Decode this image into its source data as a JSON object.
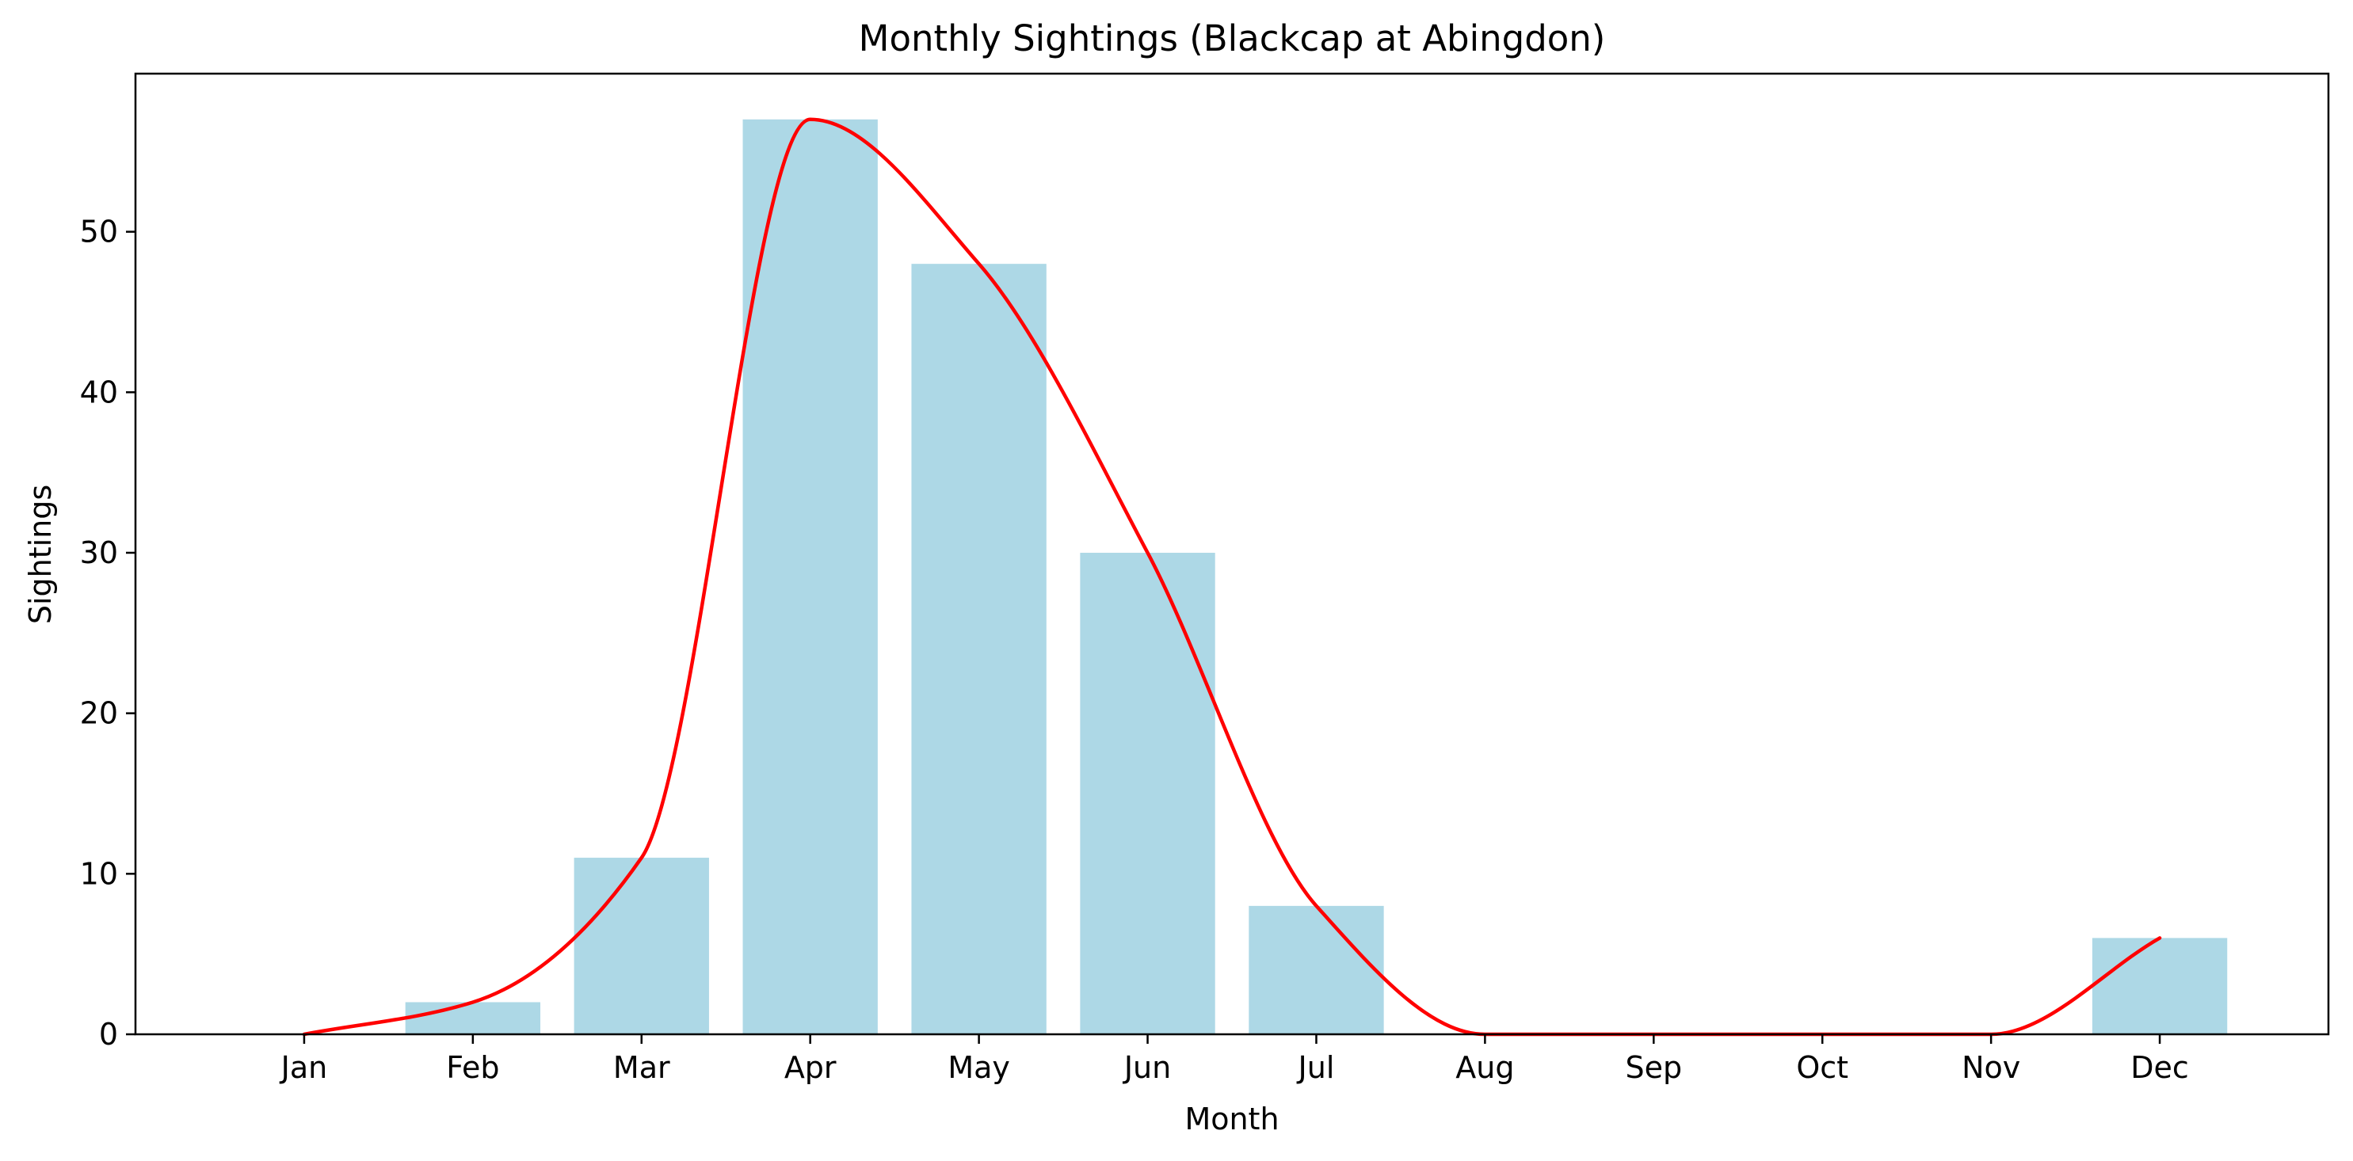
{
  "chart_data": {
    "type": "bar",
    "title": "Monthly Sightings (Blackcap at Abingdon)",
    "xlabel": "Month",
    "ylabel": "Sightings",
    "categories": [
      "Jan",
      "Feb",
      "Mar",
      "Apr",
      "May",
      "Jun",
      "Jul",
      "Aug",
      "Sep",
      "Oct",
      "Nov",
      "Dec"
    ],
    "values": [
      0,
      2,
      11,
      57,
      48,
      30,
      8,
      0,
      0,
      0,
      0,
      6
    ],
    "trend_line": {
      "type": "line",
      "smoothed": true,
      "values": [
        0,
        2,
        11,
        57,
        48,
        30,
        8,
        0,
        0,
        0,
        0,
        6
      ]
    },
    "ylim": [
      0,
      59.85
    ],
    "yticks": [
      0,
      10,
      20,
      30,
      40,
      50
    ],
    "grid": false,
    "colors": {
      "bar": "#add8e6",
      "line": "#ff0000",
      "axis": "#000000"
    }
  }
}
